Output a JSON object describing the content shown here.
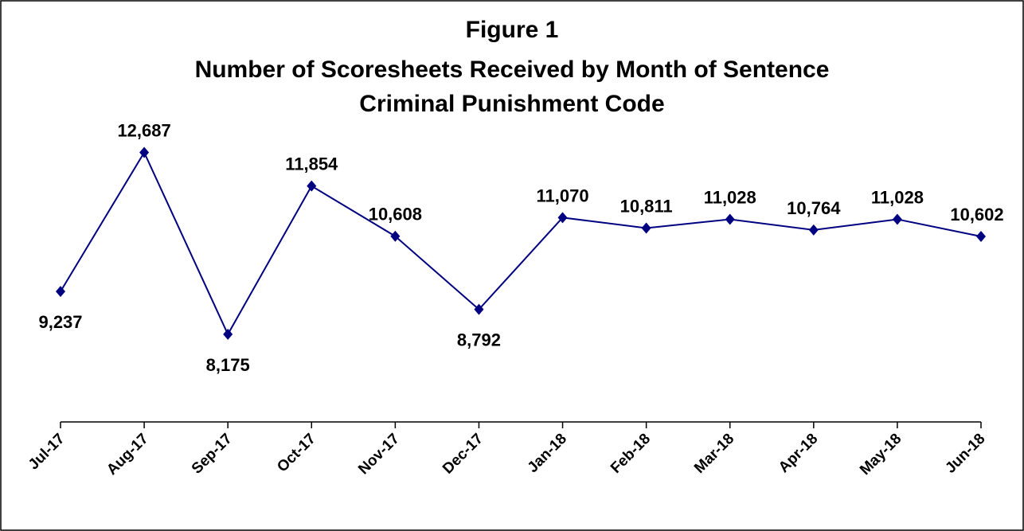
{
  "chart_data": {
    "type": "line",
    "title": [
      "Figure 1",
      "Number of Scoresheets Received by Month of Sentence",
      "Criminal Punishment Code"
    ],
    "categories": [
      "Jul-17",
      "Aug-17",
      "Sep-17",
      "Oct-17",
      "Nov-17",
      "Dec-17",
      "Jan-18",
      "Feb-18",
      "Mar-18",
      "Apr-18",
      "May-18",
      "Jun-18"
    ],
    "values": [
      9237,
      12687,
      8175,
      11854,
      10608,
      8792,
      11070,
      10811,
      11028,
      10764,
      11028,
      10602
    ],
    "value_labels": [
      "9,237",
      "12,687",
      "8,175",
      "11,854",
      "10,608",
      "8,792",
      "11,070",
      "10,811",
      "11,028",
      "10,764",
      "11,028",
      "10,602"
    ],
    "color": "#000080",
    "ylim": [
      6000,
      14000
    ]
  }
}
